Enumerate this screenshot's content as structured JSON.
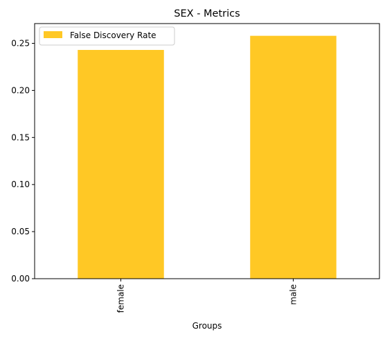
{
  "chart_data": {
    "type": "bar",
    "title": "SEX - Metrics",
    "xlabel": "Groups",
    "ylabel": "",
    "categories": [
      "female",
      "male"
    ],
    "series": [
      {
        "name": "False Discovery Rate",
        "values": [
          0.243,
          0.258
        ],
        "color": "#ffc825"
      }
    ],
    "ylim": [
      0,
      0.271
    ],
    "yticks": [
      0.0,
      0.05,
      0.1,
      0.15,
      0.2,
      0.25
    ],
    "ytick_labels": [
      "0.00",
      "0.05",
      "0.10",
      "0.15",
      "0.20",
      "0.25"
    ],
    "legend_position": "top-left",
    "grid": false
  }
}
